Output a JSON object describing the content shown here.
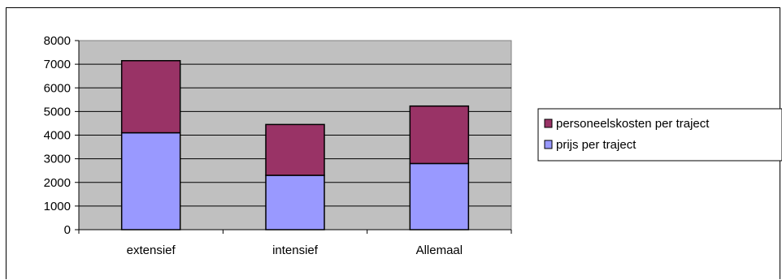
{
  "chart_data": {
    "type": "bar",
    "stacked": true,
    "categories": [
      "extensief",
      "intensief",
      "Allemaal"
    ],
    "series": [
      {
        "name": "prijs per traject",
        "values": [
          4100,
          2300,
          2800
        ],
        "color": "#9999ff"
      },
      {
        "name": "personeelskosten per traject",
        "values": [
          3050,
          2150,
          2430
        ],
        "color": "#993366"
      }
    ],
    "y_ticks": [
      "0",
      "1000",
      "2000",
      "3000",
      "4000",
      "5000",
      "6000",
      "7000",
      "8000"
    ],
    "ylim": [
      0,
      8000
    ],
    "grid": true,
    "plot_background": "#c0c0c0",
    "legend_position": "right",
    "legend_order": [
      "personeelskosten per traject",
      "prijs per traject"
    ]
  }
}
